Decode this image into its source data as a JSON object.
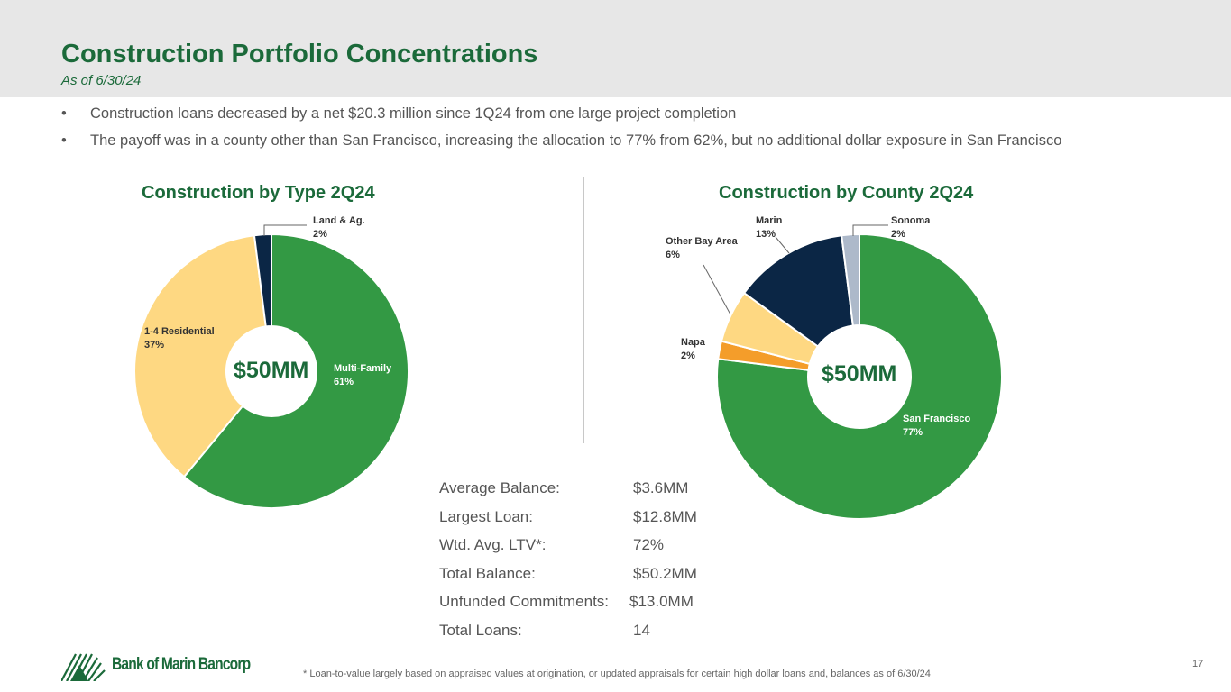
{
  "header": {
    "title": "Construction Portfolio Concentrations",
    "subtitle": "As of 6/30/24"
  },
  "bullets": [
    "Construction loans decreased by a net $20.3 million since 1Q24 from one large project completion",
    "The payoff was in a county other than San Francisco, increasing the allocation to 77% from 62%, but no additional dollar exposure in San Francisco"
  ],
  "chart_data": [
    {
      "type": "pie",
      "title": "Construction by Type 2Q24",
      "center_label": "$50MM",
      "slices": [
        {
          "name": "Multi-Family",
          "value": 61,
          "label": "61%",
          "color": "#339944"
        },
        {
          "name": "1-4 Residential",
          "value": 37,
          "label": "37%",
          "color": "#FED882"
        },
        {
          "name": "Land & Ag.",
          "value": 2,
          "label": "2%",
          "color": "#0B2645"
        }
      ]
    },
    {
      "type": "pie",
      "title": "Construction by County 2Q24",
      "center_label": "$50MM",
      "slices": [
        {
          "name": "San Francisco",
          "value": 77,
          "label": "77%",
          "color": "#339944"
        },
        {
          "name": "Napa",
          "value": 2,
          "label": "2%",
          "color": "#F49D2A"
        },
        {
          "name": "Other Bay Area",
          "value": 6,
          "label": "6%",
          "color": "#FED882"
        },
        {
          "name": "Marin",
          "value": 13,
          "label": "13%",
          "color": "#0B2645"
        },
        {
          "name": "Sonoma",
          "value": 2,
          "label": "2%",
          "color": "#ADB9CA"
        }
      ]
    }
  ],
  "stats": [
    {
      "label": "Average Balance:",
      "value": "$3.6MM"
    },
    {
      "label": "Largest Loan:",
      "value": "$12.8MM"
    },
    {
      "label": "Wtd. Avg. LTV*:",
      "value": "72%"
    },
    {
      "label": "Total Balance:",
      "value": "$50.2MM"
    },
    {
      "label": "Unfunded Commitments:",
      "value": "$13.0MM"
    },
    {
      "label": "Total Loans:",
      "value": "14"
    }
  ],
  "footer": {
    "note": "*  Loan-to-value largely based on appraised values at origination, or updated appraisals for certain high dollar loans and, balances as of 6/30/24",
    "page": "17",
    "logo_text": "Bank of Marin Bancorp"
  },
  "bullet_char": "•"
}
